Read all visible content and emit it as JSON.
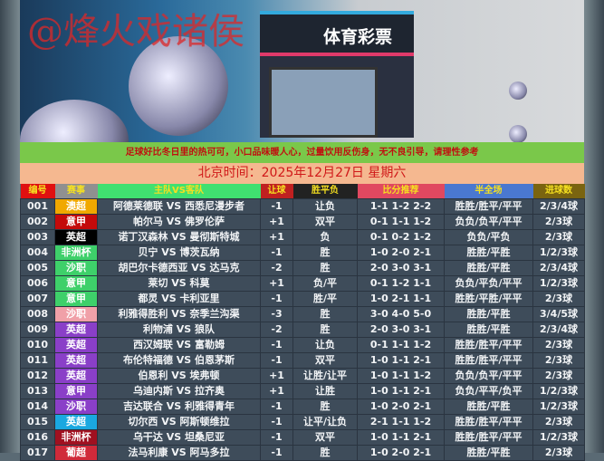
{
  "banner": {
    "watermark": "@烽火戏诸侯",
    "store_sign": "体育彩票"
  },
  "notice": "足球好比冬日里的热可可，小口品味暖人心，过量饮用反伤身，无不良引导，请理性参考",
  "date": "北京时间：2025年12月27日  星期六",
  "headers": [
    {
      "label": "编号",
      "bg": "#e01010"
    },
    {
      "label": "赛事",
      "bg": "#909090"
    },
    {
      "label": "主队VS客队",
      "bg": "#40e070"
    },
    {
      "label": "让球",
      "bg": "#c02020"
    },
    {
      "label": "胜平负",
      "bg": "#222222"
    },
    {
      "label": "比分推荐",
      "bg": "#e04860"
    },
    {
      "label": "半全场",
      "bg": "#4a78d0"
    },
    {
      "label": "进球数",
      "bg": "#7a6410"
    }
  ],
  "rows": [
    {
      "no": "001",
      "league": "澳超",
      "color": "#f0a800",
      "match": "阿德莱德联 VS 西悉尼漫步者",
      "hcp": "-1",
      "result": "让负",
      "score": "1-1 1-2 2-2",
      "htft": "胜胜/胜平/平平",
      "goals": "2/3/4球"
    },
    {
      "no": "002",
      "league": "意甲",
      "color": "#c40a0a",
      "match": "帕尔马 VS 佛罗伦萨",
      "hcp": "+1",
      "result": "双平",
      "score": "0-1 1-1 1-2",
      "htft": "负负/负平/平平",
      "goals": "2/3球"
    },
    {
      "no": "003",
      "league": "英超",
      "color": "#000000",
      "match": "诺丁汉森林 VS 曼彻斯特城",
      "hcp": "+1",
      "result": "负",
      "score": "0-1 0-2 1-2",
      "htft": "负负/平负",
      "goals": "2/3球"
    },
    {
      "no": "004",
      "league": "非洲杯",
      "color": "#3ed06a",
      "match": "贝宁 VS 博茨瓦纳",
      "hcp": "-1",
      "result": "胜",
      "score": "1-0 2-0 2-1",
      "htft": "胜胜/平胜",
      "goals": "1/2/3球"
    },
    {
      "no": "005",
      "league": "沙职",
      "color": "#3ed06a",
      "match": "胡巴尔卡德西亚 VS 达马克",
      "hcp": "-2",
      "result": "胜",
      "score": "2-0 3-0 3-1",
      "htft": "胜胜/平胜",
      "goals": "2/3/4球"
    },
    {
      "no": "006",
      "league": "意甲",
      "color": "#3ed06a",
      "match": "莱切 VS 科莫",
      "hcp": "+1",
      "result": "负/平",
      "score": "0-1 1-2 1-1",
      "htft": "负负/平负/平平",
      "goals": "1/2/3球"
    },
    {
      "no": "007",
      "league": "意甲",
      "color": "#3ed06a",
      "match": "都灵 VS 卡利亚里",
      "hcp": "-1",
      "result": "胜/平",
      "score": "1-0 2-1 1-1",
      "htft": "胜胜/平胜/平平",
      "goals": "2/3球"
    },
    {
      "no": "008",
      "league": "沙职",
      "color": "#f0a0a8",
      "match": "利雅得胜利 VS 奈季兰沟渠",
      "hcp": "-3",
      "result": "胜",
      "score": "3-0 4-0 5-0",
      "htft": "胜胜/平胜",
      "goals": "3/4/5球"
    },
    {
      "no": "009",
      "league": "英超",
      "color": "#8a3fc8",
      "match": "利物浦 VS 狼队",
      "hcp": "-2",
      "result": "胜",
      "score": "2-0 3-0 3-1",
      "htft": "胜胜/平胜",
      "goals": "2/3/4球"
    },
    {
      "no": "010",
      "league": "英超",
      "color": "#8a3fc8",
      "match": "西汉姆联 VS 富勒姆",
      "hcp": "-1",
      "result": "让负",
      "score": "0-1 1-1 1-2",
      "htft": "胜胜/胜平/平平",
      "goals": "2/3球"
    },
    {
      "no": "011",
      "league": "英超",
      "color": "#8a3fc8",
      "match": "布伦特福德 VS 伯恩茅斯",
      "hcp": "-1",
      "result": "双平",
      "score": "1-0 1-1 2-1",
      "htft": "胜胜/胜平/平平",
      "goals": "2/3球"
    },
    {
      "no": "012",
      "league": "英超",
      "color": "#8a3fc8",
      "match": "伯恩利 VS 埃弗顿",
      "hcp": "+1",
      "result": "让胜/让平",
      "score": "1-0 1-1 1-2",
      "htft": "负负/负平/平平",
      "goals": "2/3球"
    },
    {
      "no": "013",
      "league": "意甲",
      "color": "#8a3fc8",
      "match": "乌迪内斯 VS 拉齐奥",
      "hcp": "+1",
      "result": "让胜",
      "score": "1-0 1-1 2-1",
      "htft": "负负/平平/负平",
      "goals": "1/2/3球"
    },
    {
      "no": "014",
      "league": "沙职",
      "color": "#8a3fc8",
      "match": "吉达联合 VS 利雅得青年",
      "hcp": "-1",
      "result": "胜",
      "score": "1-0 2-0 2-1",
      "htft": "胜胜/平胜",
      "goals": "1/2/3球"
    },
    {
      "no": "015",
      "league": "英超",
      "color": "#1aa8e0",
      "match": "切尔西 VS 阿斯顿维拉",
      "hcp": "-1",
      "result": "让平/让负",
      "score": "2-1 1-1 1-2",
      "htft": "胜胜/胜平/平平",
      "goals": "2/3球"
    },
    {
      "no": "016",
      "league": "非洲杯",
      "color": "#a01020",
      "match": "乌干达 VS 坦桑尼亚",
      "hcp": "-1",
      "result": "双平",
      "score": "1-0 1-1 2-1",
      "htft": "胜胜/胜平/平平",
      "goals": "1/2/3球"
    },
    {
      "no": "017",
      "league": "葡超",
      "color": "#d02a3a",
      "match": "法马利康 VS 阿马多拉",
      "hcp": "-1",
      "result": "胜",
      "score": "1-0 2-0 2-1",
      "htft": "胜胜/平胜",
      "goals": "2/3球"
    }
  ]
}
